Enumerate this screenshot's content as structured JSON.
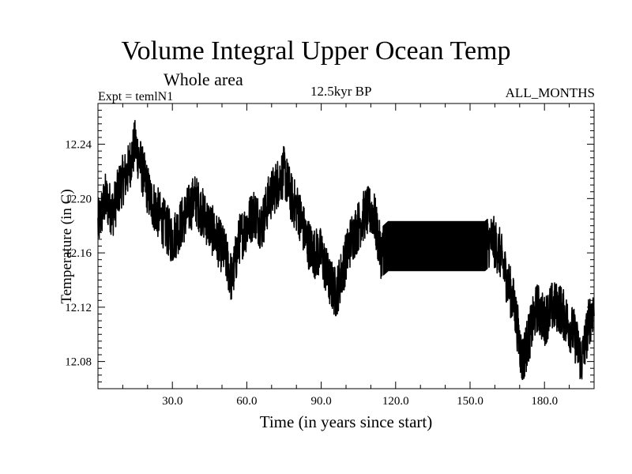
{
  "chart_data": {
    "type": "line",
    "title": "Volume Integral Upper Ocean Temp",
    "subtitle": "Whole area",
    "experiment": "Expt = temlN1",
    "period": "12.5kyr BP",
    "season": "ALL_MONTHS",
    "xlabel": "Time (in years since start)",
    "ylabel": "Temperature (in C)",
    "xlim": [
      0,
      200
    ],
    "ylim": [
      12.06,
      12.27
    ],
    "xticks": [
      30,
      60,
      90,
      120,
      150,
      180
    ],
    "xtick_labels": [
      "30.0",
      "60.0",
      "90.0",
      "120.0",
      "150.0",
      "180.0"
    ],
    "yticks": [
      12.08,
      12.12,
      12.16,
      12.2,
      12.24
    ],
    "ytick_labels": [
      "12.08",
      "12.12",
      "12.16",
      "12.20",
      "12.24"
    ],
    "grid": false,
    "series": [
      {
        "name": "Volume Integral Upper Ocean Temp",
        "x": [
          0,
          3,
          6,
          9,
          12,
          15,
          18,
          21,
          24,
          27,
          30,
          33,
          36,
          39,
          42,
          45,
          48,
          51,
          54,
          57,
          60,
          63,
          66,
          69,
          72,
          75,
          78,
          81,
          84,
          87,
          90,
          93,
          96,
          99,
          102,
          105,
          108,
          111,
          114,
          117,
          120,
          123,
          126,
          129,
          132,
          135,
          138,
          141,
          144,
          147,
          150,
          153,
          156,
          159,
          162,
          165,
          168,
          171,
          174,
          177,
          180,
          183,
          186,
          189,
          192,
          195,
          198,
          200
        ],
        "values": [
          12.18,
          12.2,
          12.19,
          12.21,
          12.22,
          12.24,
          12.22,
          12.2,
          12.19,
          12.18,
          12.17,
          12.18,
          12.19,
          12.2,
          12.19,
          12.18,
          12.17,
          12.16,
          12.14,
          12.17,
          12.18,
          12.19,
          12.18,
          12.2,
          12.21,
          12.22,
          12.2,
          12.19,
          12.17,
          12.16,
          12.16,
          12.14,
          12.13,
          12.15,
          12.17,
          12.18,
          12.19,
          12.19,
          12.16,
          12.165,
          12.165,
          12.165,
          12.165,
          12.165,
          12.165,
          12.165,
          12.165,
          12.165,
          12.165,
          12.165,
          12.165,
          12.165,
          12.165,
          12.17,
          12.16,
          12.14,
          12.12,
          12.08,
          12.1,
          12.12,
          12.11,
          12.12,
          12.12,
          12.11,
          12.1,
          12.08,
          12.11,
          12.12
        ]
      }
    ]
  }
}
